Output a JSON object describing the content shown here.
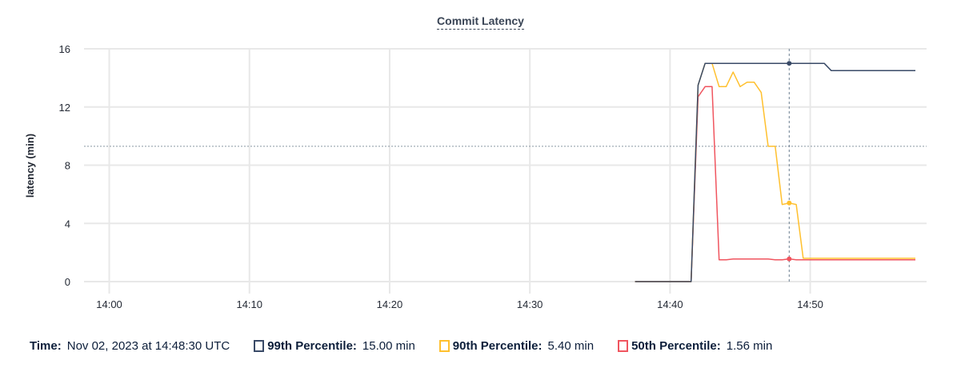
{
  "chart_data": {
    "type": "line",
    "title": "Commit Latency",
    "ylabel": "latency (min)",
    "xlabel": "",
    "ylim": [
      0,
      16
    ],
    "yticks": [
      "0",
      "4",
      "8",
      "12",
      "16"
    ],
    "xlim": [
      "13:58:12",
      "14:58:18"
    ],
    "xticks": [
      "14:00",
      "14:10",
      "14:20",
      "14:30",
      "14:40",
      "14:50"
    ],
    "grid": true,
    "reference_line_y": 9.3,
    "hover_time": "14:48:30",
    "x": [
      "14:37:30",
      "14:38:00",
      "14:38:30",
      "14:39:00",
      "14:39:30",
      "14:40:00",
      "14:40:30",
      "14:41:00",
      "14:41:30",
      "14:42:00",
      "14:42:30",
      "14:43:00",
      "14:43:30",
      "14:44:00",
      "14:44:30",
      "14:45:00",
      "14:45:30",
      "14:46:00",
      "14:46:30",
      "14:47:00",
      "14:47:30",
      "14:48:00",
      "14:48:30",
      "14:49:00",
      "14:49:30",
      "14:50:00",
      "14:50:30",
      "14:51:00",
      "14:51:30",
      "14:52:00",
      "14:52:30",
      "14:53:00",
      "14:53:30",
      "14:54:00",
      "14:54:30",
      "14:55:00",
      "14:55:30",
      "14:56:00",
      "14:56:30",
      "14:57:00",
      "14:57:30"
    ],
    "series": [
      {
        "name": "99th Percentile",
        "color": "#394a67",
        "values": [
          0,
          0,
          0,
          0,
          0,
          0,
          0,
          0,
          0,
          13.5,
          15,
          15,
          15,
          15,
          15,
          15,
          15,
          15,
          15,
          15,
          15,
          15,
          15,
          15,
          15,
          15,
          15,
          15,
          14.5,
          14.5,
          14.5,
          14.5,
          14.5,
          14.5,
          14.5,
          14.5,
          14.5,
          14.5,
          14.5,
          14.5,
          14.5
        ]
      },
      {
        "name": "90th Percentile",
        "color": "#ffc02e",
        "values": [
          0,
          0,
          0,
          0,
          0,
          0,
          0,
          0,
          0,
          13.5,
          15,
          15,
          13.4,
          13.4,
          14.4,
          13.4,
          13.7,
          13.7,
          13.0,
          9.3,
          9.3,
          5.3,
          5.4,
          5.3,
          1.6,
          1.6,
          1.6,
          1.6,
          1.6,
          1.6,
          1.6,
          1.6,
          1.6,
          1.6,
          1.6,
          1.6,
          1.6,
          1.6,
          1.6,
          1.6,
          1.6
        ]
      },
      {
        "name": "50th Percentile",
        "color": "#f0555f",
        "values": [
          0,
          0,
          0,
          0,
          0,
          0,
          0,
          0,
          0,
          12.7,
          13.4,
          13.4,
          1.5,
          1.5,
          1.55,
          1.55,
          1.55,
          1.55,
          1.55,
          1.55,
          1.5,
          1.5,
          1.56,
          1.5,
          1.5,
          1.5,
          1.5,
          1.5,
          1.5,
          1.5,
          1.5,
          1.5,
          1.5,
          1.5,
          1.5,
          1.5,
          1.5,
          1.5,
          1.5,
          1.5,
          1.5
        ]
      }
    ]
  },
  "legend": {
    "time_label": "Time:",
    "time_value": "Nov 02, 2023 at 14:48:30 UTC",
    "items": [
      {
        "label": "99th Percentile:",
        "value": "15.00 min",
        "color": "#394a67"
      },
      {
        "label": "90th Percentile:",
        "value": "5.40 min",
        "color": "#ffc02e"
      },
      {
        "label": "50th Percentile:",
        "value": "1.56 min",
        "color": "#f0555f"
      }
    ]
  }
}
